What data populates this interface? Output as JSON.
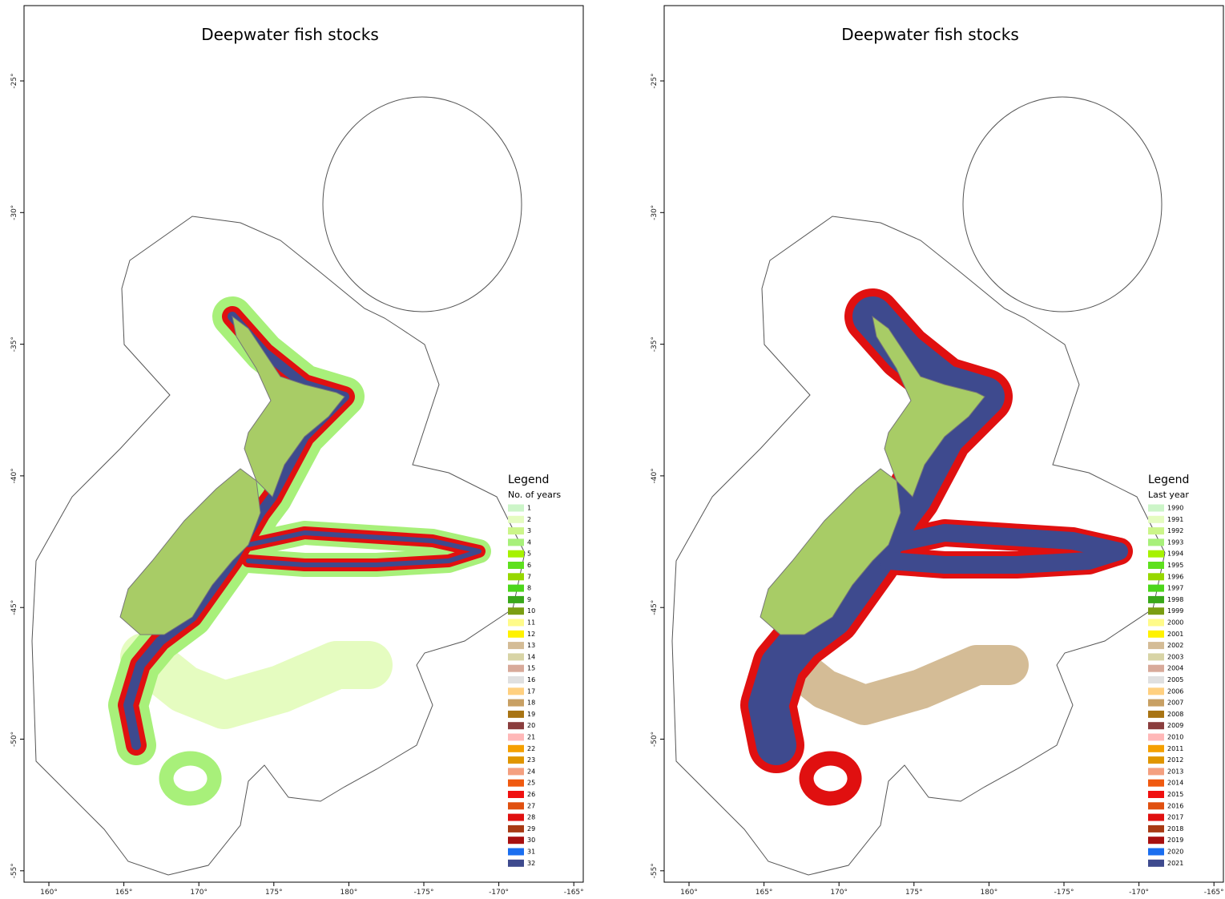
{
  "panels": [
    {
      "title": "Deepwater fish stocks",
      "y_ticks": [
        "-25°",
        "-30°",
        "-35°",
        "-40°",
        "-45°",
        "-50°",
        "-55°"
      ],
      "x_ticks": [
        "160°",
        "165°",
        "170°",
        "175°",
        "180°",
        "-175°",
        "-170°",
        "-165°"
      ],
      "legend": {
        "title": "Legend",
        "subtitle": "No. of years",
        "items": [
          {
            "label": "1",
            "color": "#ccf5c8"
          },
          {
            "label": "2",
            "color": "#e5fcc0"
          },
          {
            "label": "3",
            "color": "#ccf58a"
          },
          {
            "label": "4",
            "color": "#a8f07a"
          },
          {
            "label": "5",
            "color": "#a6f200"
          },
          {
            "label": "6",
            "color": "#5ee01e"
          },
          {
            "label": "7",
            "color": "#96d800"
          },
          {
            "label": "8",
            "color": "#4cd61a"
          },
          {
            "label": "9",
            "color": "#3aa81a"
          },
          {
            "label": "10",
            "color": "#7a9e12"
          },
          {
            "label": "11",
            "color": "#fffb8a"
          },
          {
            "label": "12",
            "color": "#fff200"
          },
          {
            "label": "13",
            "color": "#d4bc96"
          },
          {
            "label": "14",
            "color": "#d8d4a6"
          },
          {
            "label": "15",
            "color": "#d8aa9a"
          },
          {
            "label": "16",
            "color": "#e0e0e0"
          },
          {
            "label": "17",
            "color": "#ffd080"
          },
          {
            "label": "18",
            "color": "#c8a064"
          },
          {
            "label": "19",
            "color": "#a87414"
          },
          {
            "label": "20",
            "color": "#8a3e3e"
          },
          {
            "label": "21",
            "color": "#ffb8b8"
          },
          {
            "label": "22",
            "color": "#f5a000"
          },
          {
            "label": "23",
            "color": "#e09600"
          },
          {
            "label": "24",
            "color": "#f4a080"
          },
          {
            "label": "25",
            "color": "#f05a10"
          },
          {
            "label": "26",
            "color": "#f01010"
          },
          {
            "label": "27",
            "color": "#e05010"
          },
          {
            "label": "28",
            "color": "#e01010"
          },
          {
            "label": "29",
            "color": "#a83a14"
          },
          {
            "label": "30",
            "color": "#a81010"
          },
          {
            "label": "31",
            "color": "#1a6ef0"
          },
          {
            "label": "32",
            "color": "#3e4a8e"
          }
        ]
      }
    },
    {
      "title": "Deepwater fish stocks",
      "y_ticks": [
        "-25°",
        "-30°",
        "-35°",
        "-40°",
        "-45°",
        "-50°",
        "-55°"
      ],
      "x_ticks": [
        "160°",
        "165°",
        "170°",
        "175°",
        "180°",
        "-175°",
        "-170°",
        "-165°"
      ],
      "legend": {
        "title": "Legend",
        "subtitle": "Last year",
        "items": [
          {
            "label": "1990",
            "color": "#ccf5c8"
          },
          {
            "label": "1991",
            "color": "#e5fcc0"
          },
          {
            "label": "1992",
            "color": "#ccf58a"
          },
          {
            "label": "1993",
            "color": "#a8f07a"
          },
          {
            "label": "1994",
            "color": "#a6f200"
          },
          {
            "label": "1995",
            "color": "#5ee01e"
          },
          {
            "label": "1996",
            "color": "#96d800"
          },
          {
            "label": "1997",
            "color": "#4cd61a"
          },
          {
            "label": "1998",
            "color": "#3aa81a"
          },
          {
            "label": "1999",
            "color": "#7a9e12"
          },
          {
            "label": "2000",
            "color": "#fffb8a"
          },
          {
            "label": "2001",
            "color": "#fff200"
          },
          {
            "label": "2002",
            "color": "#d4bc96"
          },
          {
            "label": "2003",
            "color": "#d8d4a6"
          },
          {
            "label": "2004",
            "color": "#d8aa9a"
          },
          {
            "label": "2005",
            "color": "#e0e0e0"
          },
          {
            "label": "2006",
            "color": "#ffd080"
          },
          {
            "label": "2007",
            "color": "#c8a064"
          },
          {
            "label": "2008",
            "color": "#a87414"
          },
          {
            "label": "2009",
            "color": "#8a3e3e"
          },
          {
            "label": "2010",
            "color": "#ffb8b8"
          },
          {
            "label": "2011",
            "color": "#f5a000"
          },
          {
            "label": "2012",
            "color": "#e09600"
          },
          {
            "label": "2013",
            "color": "#f4a080"
          },
          {
            "label": "2014",
            "color": "#f05a10"
          },
          {
            "label": "2015",
            "color": "#f01010"
          },
          {
            "label": "2016",
            "color": "#e05010"
          },
          {
            "label": "2017",
            "color": "#e01010"
          },
          {
            "label": "2018",
            "color": "#a83a14"
          },
          {
            "label": "2019",
            "color": "#a81010"
          },
          {
            "label": "2020",
            "color": "#1a6ef0"
          },
          {
            "label": "2021",
            "color": "#3e4a8e"
          }
        ]
      }
    }
  ]
}
